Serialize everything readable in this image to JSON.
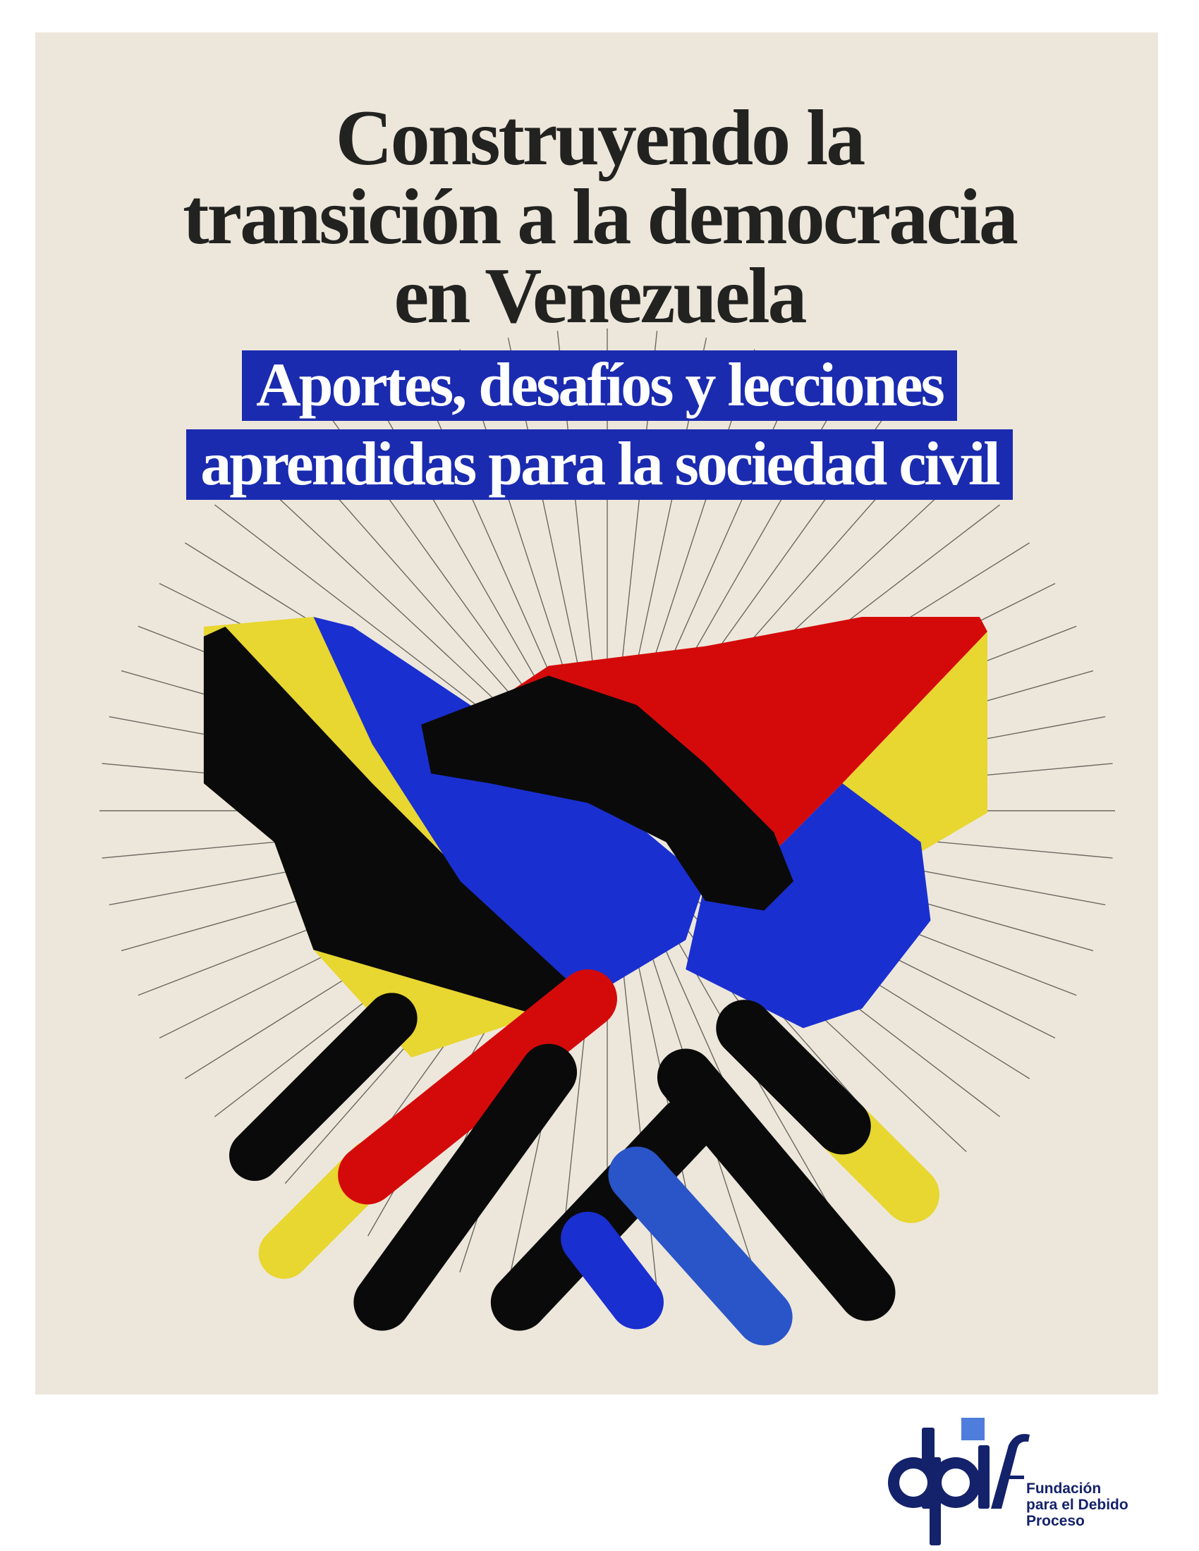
{
  "cover": {
    "title_lines": [
      "Construyendo la",
      "transición a la democracia",
      "en Venezuela"
    ],
    "subtitle_lines": [
      "Aportes, desafíos y lecciones",
      "aprendidas para la sociedad civil"
    ],
    "colors": {
      "background": "#ede7db",
      "subtitle_box": "#1a2bb0",
      "title_text": "#222220",
      "blue": "#1a2fd0",
      "red": "#d40a0a",
      "yellow": "#e8d631",
      "black": "#0a0a0a"
    },
    "illustration": "handshake-illustration"
  },
  "publisher": {
    "logo_mark": "dplf",
    "name_lines": [
      "Fundación",
      "para el Debido",
      "Proceso"
    ],
    "colors": {
      "navy": "#14226b",
      "accent": "#4f7ddb"
    }
  }
}
